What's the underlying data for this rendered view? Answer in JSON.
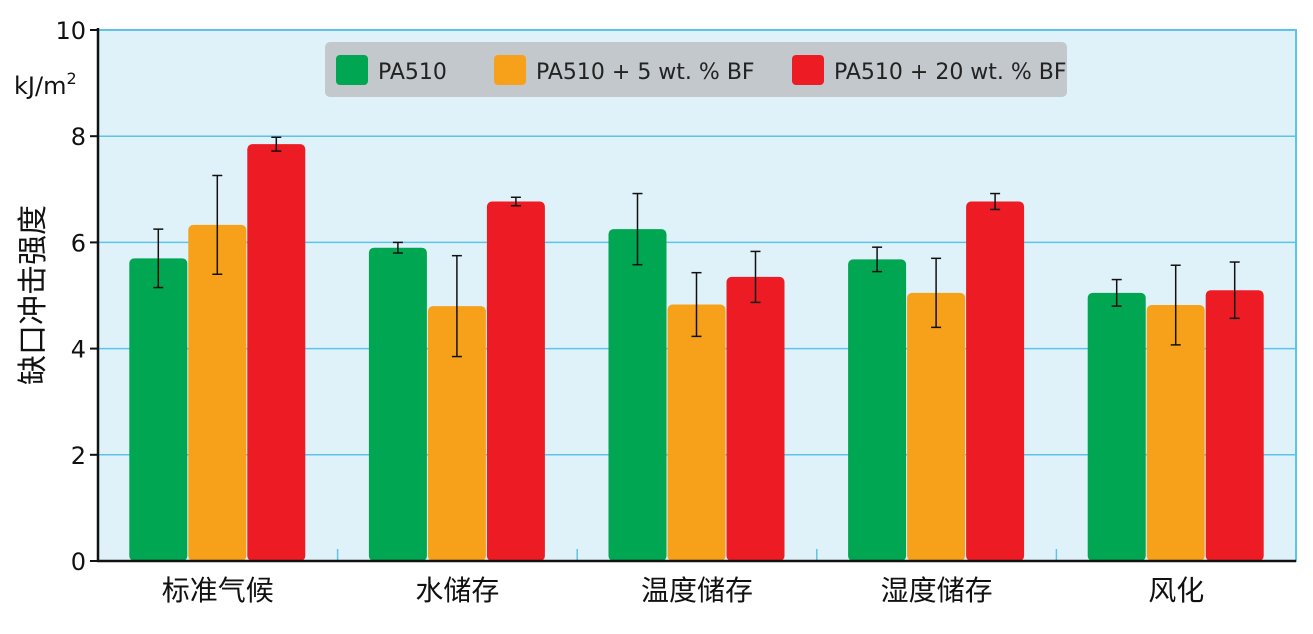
{
  "chart_data": {
    "type": "bar",
    "title": "",
    "xlabel": "",
    "ylabel": "缺口冲击强度",
    "unit": "kJ/m",
    "unit_sup": "2",
    "ylim": [
      0,
      10
    ],
    "yticks": [
      0,
      2,
      4,
      6,
      8,
      10
    ],
    "categories": [
      "标准气候",
      "水储存",
      "温度储存",
      "湿度储存",
      "风化"
    ],
    "series": [
      {
        "name": "PA510",
        "color": "#00a651",
        "values": [
          5.7,
          5.9,
          6.25,
          5.68,
          5.05
        ],
        "errors": [
          0.55,
          0.1,
          0.67,
          0.23,
          0.25
        ]
      },
      {
        "name": "PA510 + 5 wt. % BF",
        "color": "#f7a11a",
        "values": [
          6.33,
          4.8,
          4.83,
          5.05,
          4.82
        ],
        "errors": [
          0.93,
          0.95,
          0.6,
          0.65,
          0.75
        ]
      },
      {
        "name": "PA510 + 20 wt. % BF",
        "color": "#ed1c24",
        "values": [
          7.85,
          6.77,
          5.35,
          6.77,
          5.1
        ],
        "errors": [
          0.13,
          0.08,
          0.48,
          0.15,
          0.53
        ]
      }
    ],
    "grid": true,
    "legend": "top-center",
    "colors": {
      "plot_bg": "#e0f2f9",
      "grid": "#5cc4ea",
      "legend_bg": "#c2c8cc",
      "axis": "#111111"
    }
  }
}
